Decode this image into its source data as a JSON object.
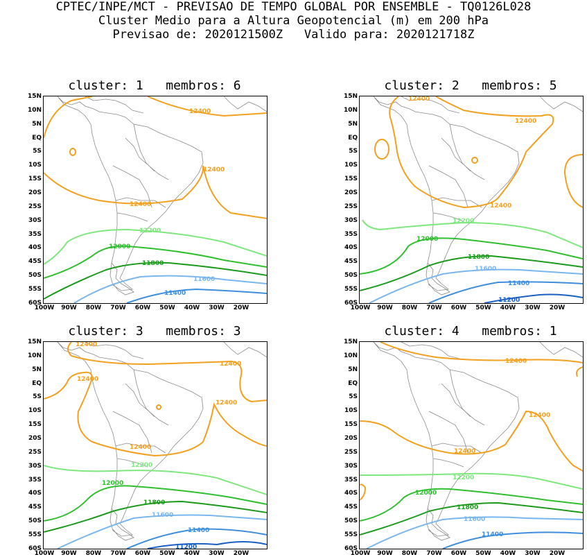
{
  "header": {
    "line1": "CPTEC/INPE/MCT - PREVISAO DE TEMPO GLOBAL POR ENSEMBLE - TQ0126L028",
    "line2": "Cluster Medio para a Altura Geopotencial (m) em 200 hPa",
    "line3": "Previsao de: 2020121500Z   Valido para: 2020121718Z"
  },
  "axes": {
    "lat_labels": [
      "15N",
      "10N",
      "5N",
      "EQ",
      "5S",
      "10S",
      "15S",
      "20S",
      "25S",
      "30S",
      "35S",
      "40S",
      "45S",
      "50S",
      "55S",
      "60S"
    ],
    "lon_labels": [
      "100W",
      "90W",
      "80W",
      "70W",
      "60W",
      "50W",
      "40W",
      "30W",
      "20W"
    ]
  },
  "colors": {
    "c12400": "#f2a01e",
    "c12200": "#7ee87e",
    "c12000": "#2fbf2f",
    "c11800": "#1c9a1c",
    "c11600": "#7ab6ee",
    "c11400": "#3e8ede",
    "c11200": "#1a5fc4",
    "coast": "#8a8a8a"
  },
  "panels": [
    {
      "title": "cluster: 1   membros: 6",
      "labels": {
        "l12400a": "12400",
        "l12400b": "12400",
        "l12400c": "12400",
        "l12200": "12200",
        "l12000": "12000",
        "l11800": "11800",
        "l11600": "11600",
        "l11400": "11400"
      }
    },
    {
      "title": "cluster: 2   membros: 5",
      "labels": {
        "l12400a": "12400",
        "l12400b": "12400",
        "l12400c": "12400",
        "l12200": "12200",
        "l12000": "12000",
        "l11800": "11800",
        "l11600": "11600",
        "l11400": "11400",
        "l11200": "11200"
      }
    },
    {
      "title": "cluster: 3   membros: 3",
      "labels": {
        "l12400a": "12400",
        "l12400b": "12400",
        "l12400c": "12400",
        "l12400d": "12400",
        "l12400e": "12400",
        "l12200": "12200",
        "l12000": "12000",
        "l11800": "11800",
        "l11600": "11600",
        "l11400": "11400",
        "l11200": "11200"
      }
    },
    {
      "title": "cluster: 4   membros: 1",
      "labels": {
        "l12400a": "12400",
        "l12400b": "12400",
        "l12400c": "12400",
        "l12200": "12200",
        "l12000": "12000",
        "l11800": "11800",
        "l11600": "11600",
        "l11400": "11400"
      }
    }
  ]
}
